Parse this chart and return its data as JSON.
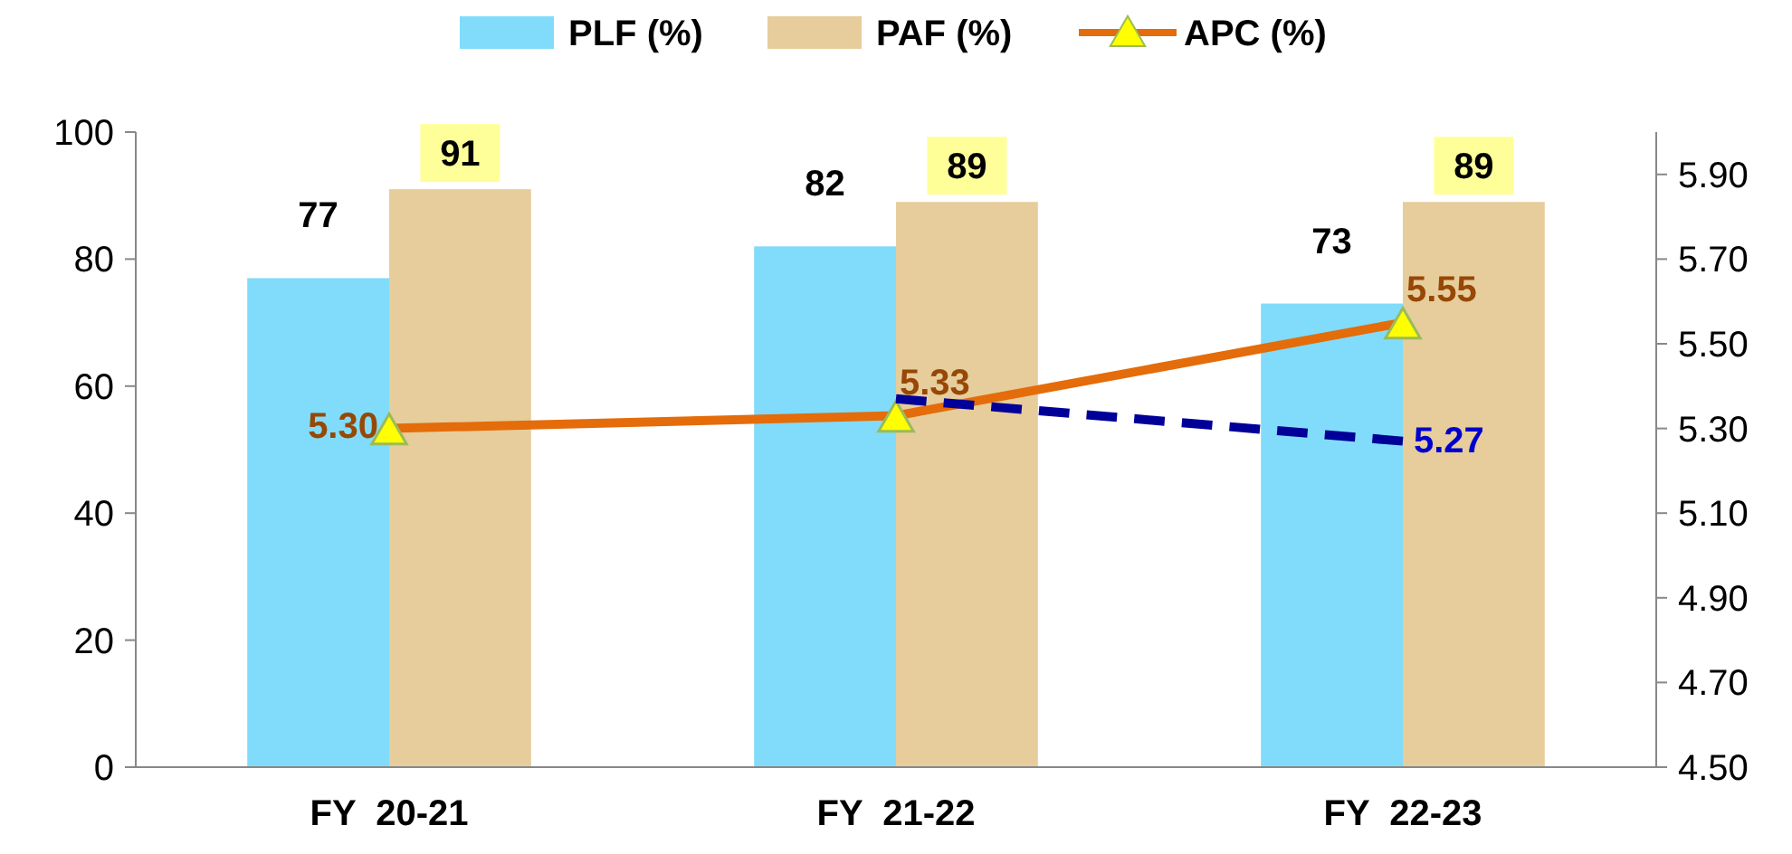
{
  "chart_data": {
    "type": "bar",
    "categories": [
      "FY  20-21",
      "FY  21-22",
      "FY  22-23"
    ],
    "series": [
      {
        "name": "PLF (%)",
        "color": "#80dcfa",
        "values": [
          77,
          82,
          73
        ],
        "data_labels": true
      },
      {
        "name": "PAF (%)",
        "color": "#e6cd9b",
        "values": [
          91,
          89,
          89
        ],
        "data_labels": true
      },
      {
        "name": "APC (%)",
        "type": "line",
        "axis": "y2",
        "color": "#e46c0a",
        "marker": "triangle",
        "values": [
          5.3,
          5.33,
          5.55
        ],
        "value_labels": [
          "5.30",
          "5.33",
          "5.55"
        ]
      },
      {
        "type": "line",
        "axis": "y2",
        "color": "#000099",
        "line_style": "dashed",
        "marker": "none",
        "values": [
          null,
          5.37,
          5.27
        ],
        "value_labels": [
          null,
          null,
          "5.27"
        ]
      }
    ],
    "ylim": [
      0,
      100
    ],
    "yticks": [
      0,
      20,
      40,
      60,
      80,
      100
    ],
    "y2lim": [
      4.5,
      6.0
    ],
    "y2ticks": [
      {
        "value": 4.5,
        "label": "4.50"
      },
      {
        "value": 4.7,
        "label": "4.70"
      },
      {
        "value": 4.9,
        "label": "4.90"
      },
      {
        "value": 5.1,
        "label": "5.10"
      },
      {
        "value": 5.3,
        "label": "5.30"
      },
      {
        "value": 5.5,
        "label": "5.50"
      },
      {
        "value": 5.7,
        "label": "5.70"
      },
      {
        "value": 5.9,
        "label": "5.90"
      }
    ],
    "grid": false,
    "legend": "top"
  }
}
